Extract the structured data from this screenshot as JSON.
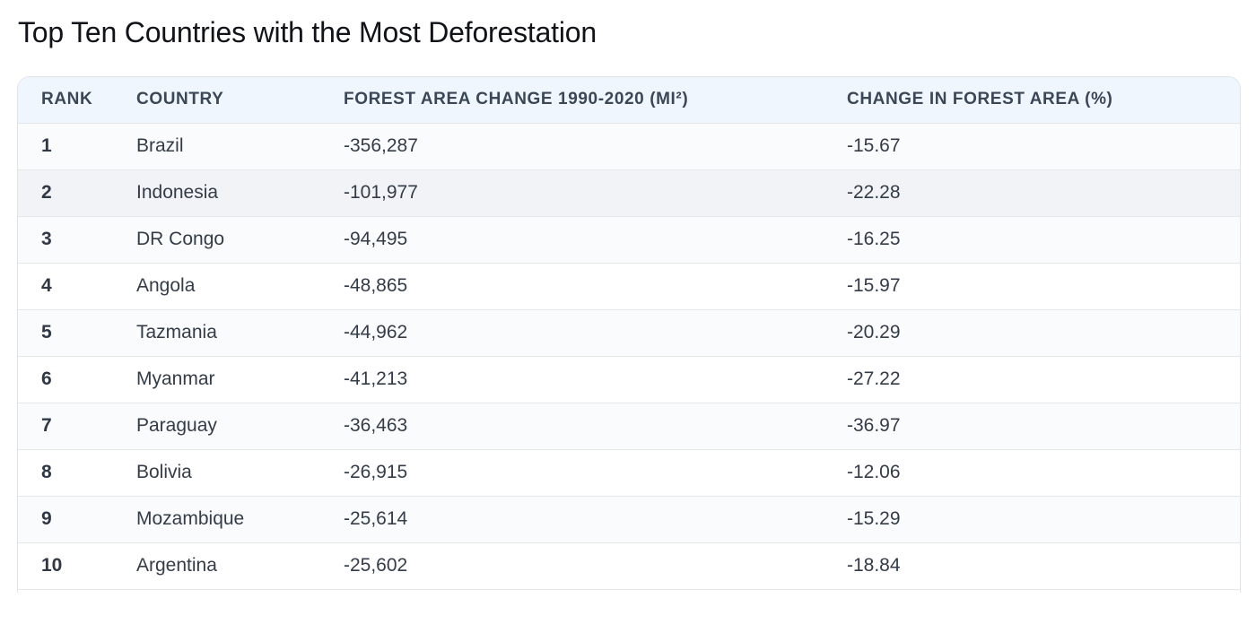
{
  "page": {
    "title": "Top Ten Countries with the Most Deforestation"
  },
  "table": {
    "columns": {
      "rank": "RANK",
      "country": "COUNTRY",
      "area_change": "FOREST AREA CHANGE 1990-2020 (MI²)",
      "pct_change": "CHANGE IN FOREST AREA (%)"
    },
    "rows": [
      {
        "rank": "1",
        "country": "Brazil",
        "area_change": "-356,287",
        "pct_change": "-15.67"
      },
      {
        "rank": "2",
        "country": "Indonesia",
        "area_change": "-101,977",
        "pct_change": "-22.28"
      },
      {
        "rank": "3",
        "country": "DR Congo",
        "area_change": "-94,495",
        "pct_change": "-16.25"
      },
      {
        "rank": "4",
        "country": "Angola",
        "area_change": "-48,865",
        "pct_change": "-15.97"
      },
      {
        "rank": "5",
        "country": "Tazmania",
        "area_change": "-44,962",
        "pct_change": "-20.29"
      },
      {
        "rank": "6",
        "country": "Myanmar",
        "area_change": "-41,213",
        "pct_change": "-27.22"
      },
      {
        "rank": "7",
        "country": "Paraguay",
        "area_change": "-36,463",
        "pct_change": "-36.97"
      },
      {
        "rank": "8",
        "country": "Bolivia",
        "area_change": "-26,915",
        "pct_change": "-12.06"
      },
      {
        "rank": "9",
        "country": "Mozambique",
        "area_change": "-25,614",
        "pct_change": "-15.29"
      },
      {
        "rank": "10",
        "country": "Argentina",
        "area_change": "-25,602",
        "pct_change": "-18.84"
      }
    ],
    "highlighted_row": 2
  },
  "colors": {
    "header_bg": "#f0f6fd",
    "highlight_row_bg": "#f1f3f6",
    "border": "#e5e7eb",
    "text": "#343c48"
  }
}
